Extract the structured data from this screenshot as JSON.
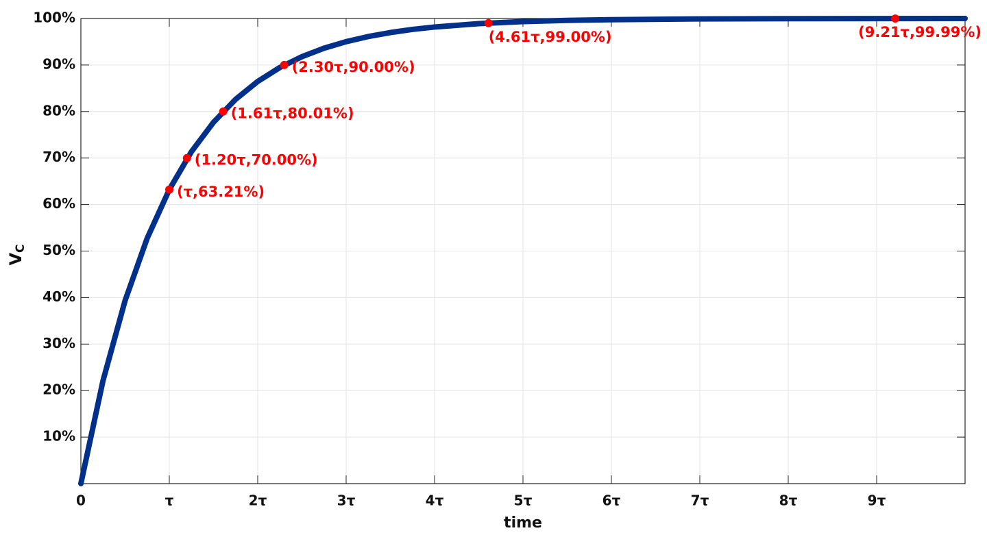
{
  "chart_data": {
    "type": "line",
    "x_label": "time",
    "y_label": "V",
    "y_label_subscript": "C",
    "x": [
      0,
      0.25,
      0.5,
      0.75,
      1,
      1.25,
      1.5,
      1.75,
      2,
      2.25,
      2.5,
      2.75,
      3,
      3.25,
      3.5,
      3.75,
      4,
      4.5,
      5,
      5.5,
      6,
      7,
      8,
      9,
      10
    ],
    "values": [
      0,
      22.12,
      39.35,
      52.76,
      63.21,
      71.35,
      77.69,
      82.62,
      86.47,
      89.46,
      91.79,
      93.61,
      95.02,
      96.12,
      96.98,
      97.65,
      98.17,
      98.89,
      99.33,
      99.59,
      99.75,
      99.91,
      99.97,
      99.99,
      100
    ],
    "color": "#00308a",
    "markers": {
      "x": [
        1,
        1.2,
        1.61,
        2.3,
        4.61,
        9.21
      ],
      "values": [
        63.21,
        70,
        80.01,
        90,
        99,
        99.99
      ],
      "value_labels": [
        "(τ,63.21%)",
        "(1.20τ,70.00%)",
        "(1.61τ,80.01%)",
        "(2.30τ,90.00%)",
        "(4.61τ,99.00%)",
        "(9.21τ,99.99%)"
      ],
      "color": "#ff0000"
    },
    "xlim": [
      0,
      10
    ],
    "ylim": [
      0,
      100
    ],
    "xticks": [
      0,
      {
        "value": 1,
        "label": "τ"
      },
      {
        "value": 2,
        "label": "2τ"
      },
      {
        "value": 3,
        "label": "3τ"
      },
      {
        "value": 4,
        "label": "4τ"
      },
      {
        "value": 5,
        "label": "5τ"
      },
      {
        "value": 6,
        "label": "6τ"
      },
      {
        "value": 7,
        "label": "7τ"
      },
      {
        "value": 8,
        "label": "8τ"
      },
      {
        "value": 9,
        "label": "9τ"
      }
    ],
    "yticks": [
      {
        "value": 10,
        "label": "10%"
      },
      {
        "value": 20,
        "label": "20%"
      },
      {
        "value": 30,
        "label": "30%"
      },
      {
        "value": 40,
        "label": "40%"
      },
      {
        "value": 50,
        "label": "50%"
      },
      {
        "value": 60,
        "label": "60%"
      },
      {
        "value": 70,
        "label": "70%"
      },
      {
        "value": 80,
        "label": "80%"
      },
      {
        "value": 90,
        "label": "90%"
      },
      {
        "value": 100,
        "label": "100%"
      }
    ],
    "grid": true
  }
}
